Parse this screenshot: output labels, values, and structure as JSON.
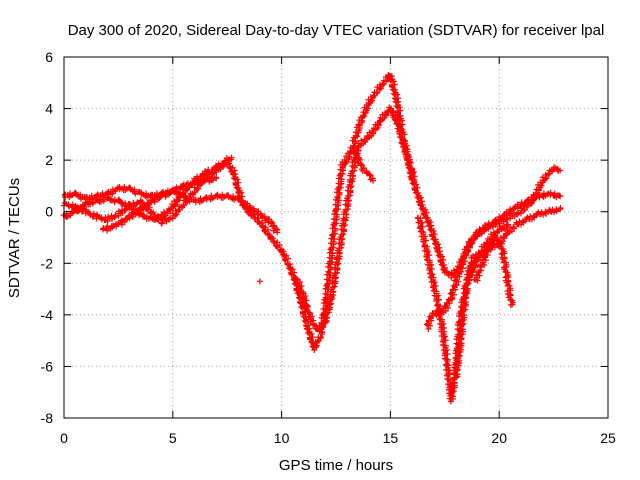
{
  "chart_data": {
    "type": "scatter",
    "title": "Day 300 of 2020, Sidereal Day-to-day VTEC variation (SDTVAR) for receiver lpal",
    "xlabel": "GPS time / hours",
    "ylabel": "SDTVAR / TECUs",
    "xlim": [
      0,
      25
    ],
    "ylim": [
      -8,
      6
    ],
    "xticks": [
      0,
      5,
      10,
      15,
      20,
      25
    ],
    "yticks": [
      -8,
      -6,
      -4,
      -2,
      0,
      2,
      4,
      6
    ],
    "xtick_labels": [
      "0",
      "5",
      "10",
      "15",
      "20",
      "25"
    ],
    "ytick_labels": [
      "-8",
      "-6",
      "-4",
      "-2",
      "0",
      "2",
      "4",
      "6"
    ],
    "grid": true,
    "marker": "+",
    "color": "#ff0000",
    "series": [
      {
        "points": [
          [
            0.0,
            0.3
          ],
          [
            0.5,
            0.2
          ],
          [
            1.0,
            0.0
          ],
          [
            1.5,
            -0.2
          ],
          [
            2.0,
            -0.3
          ],
          [
            2.5,
            -0.1
          ],
          [
            3.0,
            0.2
          ],
          [
            3.5,
            0.4
          ],
          [
            4.0,
            0.0
          ],
          [
            4.5,
            -0.4
          ],
          [
            5.0,
            -0.2
          ],
          [
            5.5,
            0.3
          ],
          [
            6.0,
            0.8
          ],
          [
            6.5,
            1.3
          ],
          [
            7.0,
            1.6
          ],
          [
            7.5,
            1.9
          ],
          [
            7.8,
            1.5
          ],
          [
            8.2,
            0.3
          ],
          [
            8.6,
            -0.1
          ],
          [
            9.0,
            -0.4
          ],
          [
            9.5,
            -1.0
          ],
          [
            10.0,
            -1.5
          ],
          [
            10.3,
            -2.0
          ],
          [
            10.6,
            -2.6
          ],
          [
            10.9,
            -3.5
          ],
          [
            11.2,
            -4.5
          ],
          [
            11.5,
            -5.3
          ],
          [
            11.8,
            -4.8
          ],
          [
            12.0,
            -3.7
          ],
          [
            12.2,
            -2.3
          ],
          [
            12.4,
            -0.8
          ],
          [
            12.6,
            0.6
          ],
          [
            12.8,
            1.8
          ],
          [
            13.0,
            2.0
          ],
          [
            13.3,
            2.6
          ],
          [
            13.6,
            3.4
          ],
          [
            14.0,
            4.2
          ],
          [
            14.4,
            4.7
          ],
          [
            14.8,
            5.1
          ],
          [
            15.0,
            5.3
          ],
          [
            15.3,
            4.3
          ],
          [
            15.6,
            2.8
          ],
          [
            16.0,
            1.3
          ],
          [
            16.4,
            0.3
          ],
          [
            16.8,
            -0.5
          ],
          [
            17.2,
            -1.5
          ],
          [
            17.5,
            -2.3
          ],
          [
            17.8,
            -2.5
          ],
          [
            18.2,
            -2.1
          ],
          [
            18.6,
            -1.3
          ],
          [
            19.0,
            -0.9
          ],
          [
            19.5,
            -0.6
          ],
          [
            20.0,
            -0.4
          ],
          [
            20.5,
            -0.2
          ],
          [
            21.0,
            0.0
          ],
          [
            21.5,
            0.4
          ],
          [
            22.0,
            1.2
          ],
          [
            22.5,
            1.7
          ],
          [
            22.8,
            1.6
          ]
        ]
      },
      {
        "points": [
          [
            0.0,
            0.6
          ],
          [
            0.5,
            0.7
          ],
          [
            1.0,
            0.5
          ],
          [
            1.5,
            0.6
          ],
          [
            2.0,
            0.7
          ],
          [
            2.5,
            0.9
          ],
          [
            3.0,
            0.9
          ],
          [
            3.5,
            0.7
          ],
          [
            4.0,
            0.6
          ],
          [
            4.5,
            0.7
          ],
          [
            5.0,
            0.8
          ],
          [
            5.5,
            0.6
          ],
          [
            6.0,
            0.4
          ],
          [
            6.5,
            0.5
          ],
          [
            7.0,
            0.6
          ],
          [
            7.5,
            0.6
          ],
          [
            8.0,
            0.5
          ],
          [
            8.5,
            0.2
          ],
          [
            9.0,
            -0.1
          ],
          [
            9.5,
            -0.4
          ],
          [
            9.8,
            -0.8
          ]
        ]
      },
      {
        "points": [
          [
            0.0,
            -0.2
          ],
          [
            0.5,
            0.0
          ],
          [
            1.0,
            0.3
          ],
          [
            1.5,
            0.4
          ],
          [
            2.0,
            0.5
          ],
          [
            2.5,
            0.4
          ],
          [
            3.0,
            0.2
          ],
          [
            3.5,
            -0.1
          ],
          [
            4.0,
            -0.3
          ],
          [
            4.5,
            -0.2
          ],
          [
            5.0,
            0.2
          ],
          [
            5.5,
            0.8
          ],
          [
            6.0,
            1.2
          ],
          [
            6.5,
            1.5
          ],
          [
            7.0,
            1.7
          ],
          [
            7.5,
            2.0
          ],
          [
            7.7,
            2.1
          ]
        ]
      },
      {
        "points": [
          [
            1.8,
            -0.7
          ],
          [
            2.5,
            -0.5
          ],
          [
            3.0,
            -0.2
          ],
          [
            3.5,
            0.1
          ],
          [
            4.0,
            0.4
          ],
          [
            4.5,
            0.6
          ],
          [
            5.0,
            0.8
          ],
          [
            5.5,
            1.0
          ],
          [
            6.0,
            1.1
          ],
          [
            6.5,
            1.2
          ],
          [
            7.0,
            1.3
          ]
        ]
      },
      {
        "points": [
          [
            10.6,
            -2.5
          ],
          [
            10.9,
            -3.0
          ],
          [
            11.2,
            -3.8
          ],
          [
            11.4,
            -4.3
          ],
          [
            11.7,
            -4.6
          ],
          [
            12.0,
            -4.3
          ],
          [
            12.3,
            -3.3
          ],
          [
            12.6,
            -1.8
          ],
          [
            12.9,
            -0.3
          ],
          [
            13.2,
            1.2
          ],
          [
            13.4,
            2.2
          ],
          [
            13.6,
            2.6
          ],
          [
            14.0,
            2.9
          ],
          [
            14.3,
            3.2
          ],
          [
            14.6,
            3.6
          ],
          [
            15.0,
            4.0
          ],
          [
            15.3,
            3.5
          ],
          [
            15.6,
            2.6
          ],
          [
            15.9,
            1.8
          ],
          [
            16.1,
            1.2
          ]
        ]
      },
      {
        "points": [
          [
            13.4,
            2.3
          ],
          [
            13.6,
            1.9
          ],
          [
            13.8,
            1.6
          ],
          [
            14.0,
            1.5
          ],
          [
            14.2,
            1.2
          ]
        ]
      },
      {
        "points": [
          [
            16.3,
            -0.2
          ],
          [
            16.6,
            -1.3
          ],
          [
            16.9,
            -2.5
          ],
          [
            17.2,
            -3.6
          ],
          [
            17.4,
            -4.6
          ],
          [
            17.6,
            -5.9
          ],
          [
            17.8,
            -7.3
          ],
          [
            18.0,
            -6.2
          ],
          [
            18.2,
            -4.2
          ],
          [
            18.5,
            -2.8
          ],
          [
            18.8,
            -2.2
          ],
          [
            19.2,
            -1.5
          ],
          [
            19.6,
            -1.0
          ],
          [
            20.0,
            -0.7
          ],
          [
            20.4,
            -0.5
          ]
        ]
      },
      {
        "points": [
          [
            16.7,
            -4.5
          ],
          [
            16.9,
            -4.0
          ],
          [
            17.2,
            -3.9
          ],
          [
            17.5,
            -3.8
          ],
          [
            17.8,
            -3.3
          ],
          [
            18.0,
            -2.8
          ],
          [
            18.3,
            -2.0
          ],
          [
            18.6,
            -1.3
          ],
          [
            18.9,
            -0.9
          ],
          [
            19.3,
            -0.6
          ],
          [
            19.8,
            -0.4
          ],
          [
            20.3,
            -0.1
          ],
          [
            20.8,
            0.2
          ],
          [
            21.3,
            0.4
          ],
          [
            21.8,
            0.6
          ],
          [
            22.3,
            0.7
          ],
          [
            22.8,
            0.6
          ]
        ]
      },
      {
        "points": [
          [
            18.0,
            -6.4
          ],
          [
            18.2,
            -5.2
          ],
          [
            18.4,
            -3.6
          ],
          [
            18.6,
            -2.4
          ],
          [
            18.8,
            -1.8
          ],
          [
            19.2,
            -1.6
          ],
          [
            19.6,
            -1.4
          ],
          [
            20.0,
            -1.2
          ],
          [
            20.4,
            -0.8
          ],
          [
            20.8,
            -0.5
          ],
          [
            21.3,
            -0.3
          ],
          [
            21.8,
            -0.1
          ],
          [
            22.3,
            0.0
          ],
          [
            22.8,
            0.1
          ]
        ]
      },
      {
        "points": [
          [
            18.9,
            -2.7
          ],
          [
            19.2,
            -2.1
          ],
          [
            19.5,
            -1.5
          ],
          [
            19.8,
            -1.0
          ],
          [
            20.1,
            -1.3
          ],
          [
            20.3,
            -2.2
          ],
          [
            20.5,
            -3.3
          ],
          [
            20.6,
            -3.6
          ]
        ]
      },
      {
        "points": [
          [
            9.0,
            -2.7
          ]
        ]
      }
    ]
  }
}
